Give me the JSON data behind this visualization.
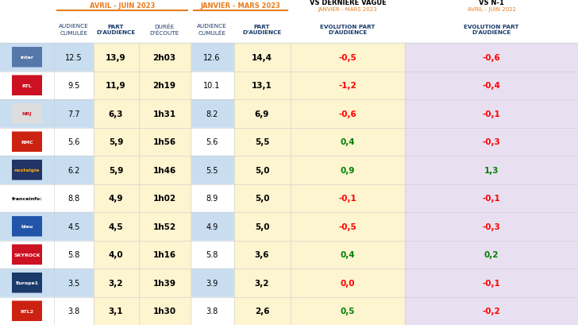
{
  "section1_label": "AVRIL - JUIN 2023",
  "section2_label": "JANVIER - MARS 2023",
  "section3_label": "VS DERNIÈRE VAGUE",
  "section3_sub": "JANVIER - MARS 2023",
  "section4_label": "VS N-1",
  "section4_sub": "AVRIL - JUIN 2022",
  "data": [
    [
      "12.5",
      "13,9",
      "2h03",
      "12.6",
      "14,4",
      "-0,5",
      "-0,6"
    ],
    [
      "9.5",
      "11,9",
      "2h19",
      "10.1",
      "13,1",
      "-1,2",
      "-0,4"
    ],
    [
      "7.7",
      "6,3",
      "1h31",
      "8.2",
      "6,9",
      "-0,6",
      "-0,1"
    ],
    [
      "5.6",
      "5,9",
      "1h56",
      "5.6",
      "5,5",
      "0,4",
      "-0,3"
    ],
    [
      "6.2",
      "5,9",
      "1h46",
      "5.5",
      "5,0",
      "0,9",
      "1,3"
    ],
    [
      "8.8",
      "4,9",
      "1h02",
      "8.9",
      "5,0",
      "-0,1",
      "-0,1"
    ],
    [
      "4.5",
      "4,5",
      "1h52",
      "4.9",
      "5,0",
      "-0,5",
      "-0,3"
    ],
    [
      "5.8",
      "4,0",
      "1h16",
      "5.8",
      "3,6",
      "0,4",
      "0,2"
    ],
    [
      "3.5",
      "3,2",
      "1h39",
      "3.9",
      "3,2",
      "0,0",
      "-0,1"
    ],
    [
      "3.8",
      "3,1",
      "1h30",
      "3.8",
      "2,6",
      "0,5",
      "-0,2"
    ]
  ],
  "station_labels": [
    "inter",
    "RTL",
    "NRJ",
    "RMC",
    "nostalgie",
    "franceinfo:",
    "bleu",
    "SKYROCK",
    "Europe1",
    "RTL2"
  ],
  "station_label_colors": [
    "#ffffff",
    "#ffffff",
    "#cc1122",
    "#cc1122",
    "#ffffff",
    "#000000",
    "#ffffff",
    "#cc1122",
    "#ffffff",
    "#ffffff"
  ],
  "station_bg_colors": [
    "#6699cc",
    "#cc1122",
    "#f5f5f5",
    "#cc1122",
    "#1a3a6a",
    "#f5f5f5",
    "#3366aa",
    "#cc1122",
    "#1a3a6a",
    "#cc1122"
  ],
  "row_bg_blue": "#c8ddf0",
  "row_bg_white": "#ffffff",
  "col_part_bg": "#fdf4d0",
  "col_evol1_bg": "#fdf4d0",
  "col_evol2_bg": "#e8e0f0",
  "col6_colors": [
    "red",
    "red",
    "red",
    "green",
    "green",
    "red",
    "red",
    "green",
    "red",
    "green"
  ],
  "col7_colors": [
    "red",
    "red",
    "red",
    "red",
    "green",
    "red",
    "red",
    "green",
    "red",
    "red"
  ],
  "orange": "#e87c1e",
  "dark_blue": "#1a3a6a",
  "header_blue": "#1a3a6a",
  "bg_color": "#ffffff",
  "col1_bold": false,
  "col2_bold": true,
  "col3_bold": true,
  "col4_bold": false,
  "col5_bold": true
}
